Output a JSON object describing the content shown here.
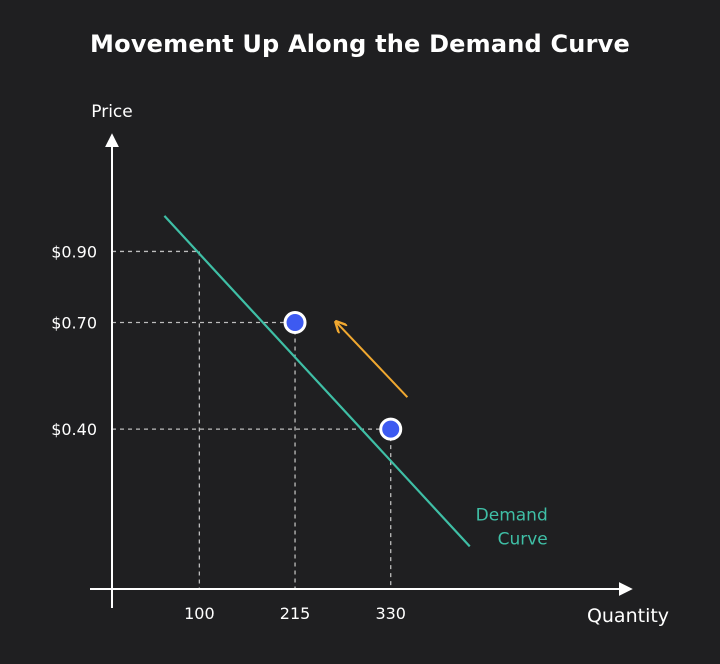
{
  "chart_data": {
    "type": "line",
    "title": "Movement Up Along the Demand Curve",
    "xlabel": "Quantity",
    "ylabel": "Price",
    "x_ticks": [
      {
        "value": 100,
        "label": "100"
      },
      {
        "value": 215,
        "label": "215"
      },
      {
        "value": 330,
        "label": "330"
      }
    ],
    "y_ticks": [
      {
        "value": 0.9,
        "label": "$0.90"
      },
      {
        "value": 0.7,
        "label": "$0.70"
      },
      {
        "value": 0.4,
        "label": "$0.40"
      }
    ],
    "xlim": [
      -5,
      620
    ],
    "ylim": [
      -0.05,
      1.27
    ],
    "grid": false,
    "series": [
      {
        "name": "Demand Curve",
        "label_lines": [
          "Demand",
          "Curve"
        ],
        "color": "#3fbfa6",
        "x": [
          58,
          425
        ],
        "y": [
          1.0,
          0.07
        ]
      }
    ],
    "points": [
      {
        "x": 215,
        "y": 0.7
      },
      {
        "x": 330,
        "y": 0.4
      }
    ],
    "reference_lines": [
      {
        "x": 100,
        "y": 0.9
      },
      {
        "x": 215,
        "y": 0.7
      },
      {
        "x": 330,
        "y": 0.4
      }
    ],
    "arrow": {
      "from": {
        "x": 350,
        "y": 0.49
      },
      "to": {
        "x": 265,
        "y": 0.7
      },
      "color": "#f0a830"
    },
    "point_color": "#3d5af1",
    "axis_color": "#ffffff",
    "background": "#1f1f21"
  }
}
